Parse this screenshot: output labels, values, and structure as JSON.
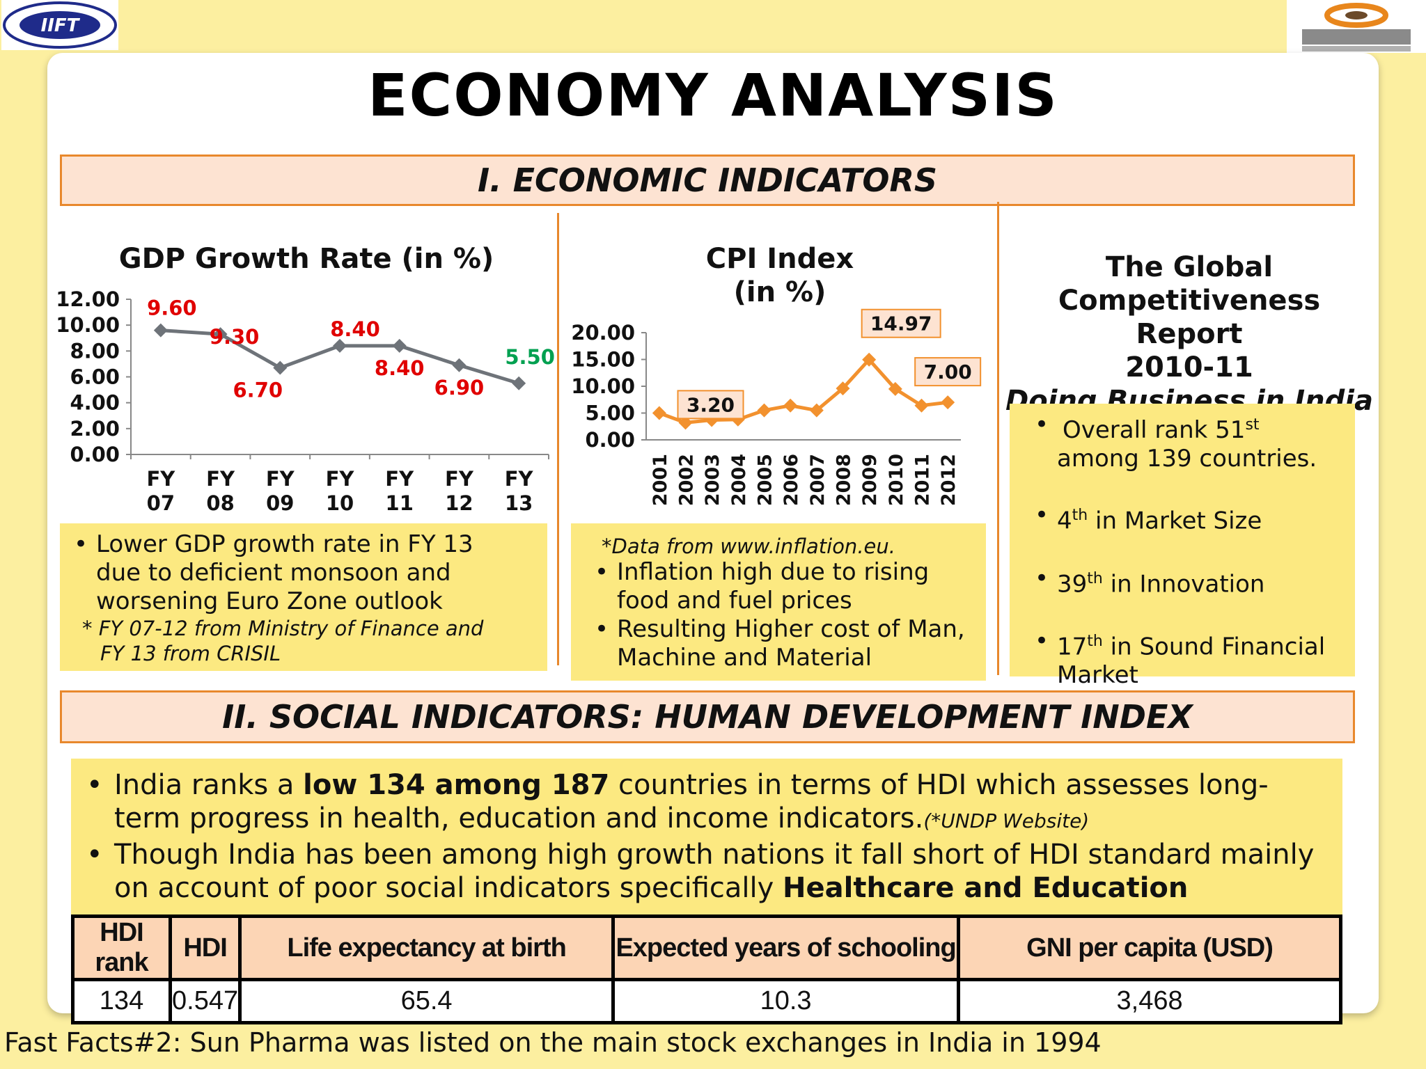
{
  "title": "ECONOMY ANALYSIS",
  "section1": {
    "heading": "I. ECONOMIC INDICATORS"
  },
  "section2": {
    "heading": "II. SOCIAL INDICATORS: HUMAN DEVELOPMENT INDEX"
  },
  "colors": {
    "band_bg": "#fde3d2",
    "band_border": "#e8882c",
    "yellow_box": "#fce981",
    "gdp_line": "#6e7379",
    "cpi_line": "#f2912e",
    "label_red": "#e00000",
    "label_green": "#00a050"
  },
  "chart_data": [
    {
      "type": "line",
      "title": "GDP Growth Rate (in %)",
      "categories": [
        "FY 07",
        "FY 08",
        "FY 09",
        "FY 10",
        "FY 11",
        "FY 12",
        "FY 13"
      ],
      "category_lines": [
        [
          "FY",
          "07"
        ],
        [
          "FY",
          "08"
        ],
        [
          "FY",
          "09"
        ],
        [
          "FY",
          "10"
        ],
        [
          "FY",
          "11"
        ],
        [
          "FY",
          "12"
        ],
        [
          "FY",
          "13"
        ]
      ],
      "series": [
        {
          "values": [
            9.6,
            9.3,
            6.7,
            8.4,
            8.4,
            6.9,
            5.5
          ]
        }
      ],
      "data_labels": [
        "9.60",
        "9.30",
        "6.70",
        "8.40",
        "8.40",
        "6.90",
        "5.50"
      ],
      "yticks": [
        "0.00",
        "2.00",
        "4.00",
        "6.00",
        "8.00",
        "10.00",
        "12.00"
      ],
      "ylim": [
        0,
        12
      ],
      "grid": false
    },
    {
      "type": "line",
      "title": "CPI Index (in %)",
      "title_lines": [
        "CPI Index",
        "(in %)"
      ],
      "categories": [
        "2001",
        "2002",
        "2003",
        "2004",
        "2005",
        "2006",
        "2007",
        "2008",
        "2009",
        "2010",
        "2011",
        "2012"
      ],
      "series": [
        {
          "values": [
            5.0,
            3.2,
            3.7,
            3.8,
            5.5,
            6.4,
            5.5,
            9.6,
            14.97,
            9.5,
            6.4,
            7.0
          ]
        }
      ],
      "callouts": [
        {
          "index": 1,
          "label": "3.20"
        },
        {
          "index": 8,
          "label": "14.97"
        },
        {
          "index": 11,
          "label": "7.00"
        }
      ],
      "yticks": [
        "0.00",
        "5.00",
        "10.00",
        "15.00",
        "20.00"
      ],
      "ylim": [
        0,
        20
      ],
      "grid": false
    }
  ],
  "gdp_notes": {
    "bullet": "Lower GDP growth rate in FY 13 due to deficient monsoon and worsening Euro Zone outlook",
    "source_line1": "* FY 07-12 from Ministry of Finance and",
    "source_line2": "FY 13 from CRISIL"
  },
  "cpi_notes": {
    "source": "*Data from www.inflation.eu.",
    "bullets": [
      "Inflation high due to rising food and fuel prices",
      "Resulting Higher cost of Man, Machine and Material"
    ]
  },
  "gcr": {
    "title_lines": [
      "The Global",
      "Competitiveness Report",
      "2010-11"
    ],
    "subtitle": "Doing Business in India",
    "items": [
      {
        "pre": "Overall rank 51",
        "sup": "st",
        "post": " among 139 countries."
      },
      {
        "pre": "4",
        "sup": "th",
        "post": " in Market Size"
      },
      {
        "pre": "39",
        "sup": "th",
        "post": " in Innovation"
      },
      {
        "pre": "17",
        "sup": "th",
        "post": " in Sound Financial Market"
      }
    ]
  },
  "hdi_text": {
    "b1_pre": "India ranks a ",
    "b1_bold": "low 134 among 187",
    "b1_post": " countries in terms of HDI which assesses long-term progress in health, education and income indicators.",
    "b1_note": "(*UNDP Website)",
    "b2_pre": "Though India has been among high growth nations it fall short of HDI standard mainly on account of poor social indicators specifically ",
    "b2_bold": "Healthcare and Education"
  },
  "hdi_table": {
    "headers": [
      "HDI rank",
      "HDI",
      "Life expectancy at birth",
      "Expected years of schooling",
      "GNI per capita (USD)"
    ],
    "row": [
      "134",
      "0.547",
      "65.4",
      "10.3",
      "3,468"
    ]
  },
  "footer": "Fast Facts#2: Sun Pharma was listed on the main stock exchanges in India in 1994"
}
